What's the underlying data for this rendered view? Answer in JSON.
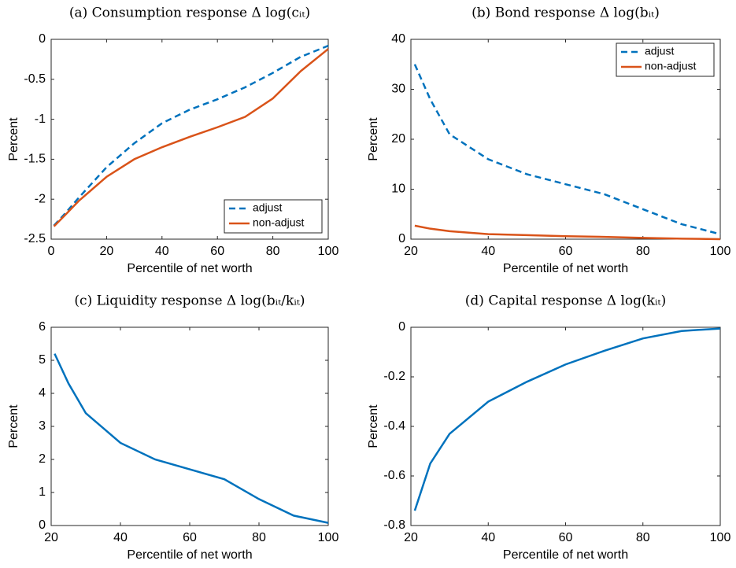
{
  "chart_data": [
    {
      "type": "line",
      "title": "(a) Consumption response Δ log(cᵢₜ)",
      "xlabel": "Percentile of net worth",
      "ylabel": "Percent",
      "x": [
        1,
        5,
        10,
        20,
        30,
        40,
        50,
        60,
        70,
        80,
        90,
        100
      ],
      "series": [
        {
          "name": "adjust",
          "color": "#0072bd",
          "dash": true,
          "values": [
            -2.33,
            -2.18,
            -1.98,
            -1.6,
            -1.3,
            -1.05,
            -0.88,
            -0.75,
            -0.6,
            -0.42,
            -0.22,
            -0.08
          ]
        },
        {
          "name": "non-adjust",
          "color": "#d95319",
          "dash": false,
          "values": [
            -2.34,
            -2.2,
            -2.02,
            -1.72,
            -1.5,
            -1.35,
            -1.22,
            -1.1,
            -0.97,
            -0.74,
            -0.4,
            -0.12
          ]
        }
      ],
      "xlim": [
        0,
        100
      ],
      "xticks": [
        0,
        20,
        40,
        60,
        80,
        100
      ],
      "ylim": [
        -2.5,
        0
      ],
      "yticks": [
        -2.5,
        -2,
        -1.5,
        -1,
        -0.5,
        0
      ],
      "legend": "lower right"
    },
    {
      "type": "line",
      "title": "(b) Bond response Δ log(bᵢₜ)",
      "xlabel": "Percentile of net worth",
      "ylabel": "Percent",
      "x": [
        21,
        25,
        30,
        40,
        50,
        60,
        70,
        80,
        90,
        100
      ],
      "series": [
        {
          "name": "adjust",
          "color": "#0072bd",
          "dash": true,
          "values": [
            35,
            28,
            21,
            16,
            13,
            11,
            9,
            6,
            3,
            1
          ]
        },
        {
          "name": "non-adjust",
          "color": "#d95319",
          "dash": false,
          "values": [
            2.7,
            2.1,
            1.6,
            1.0,
            0.8,
            0.6,
            0.45,
            0.25,
            0.1,
            0
          ]
        }
      ],
      "xlim": [
        20,
        100
      ],
      "xticks": [
        20,
        40,
        60,
        80,
        100
      ],
      "ylim": [
        0,
        40
      ],
      "yticks": [
        0,
        10,
        20,
        30,
        40
      ],
      "legend": "upper right"
    },
    {
      "type": "line",
      "title": "(c) Liquidity response Δ log(bᵢₜ/kᵢₜ)",
      "xlabel": "Percentile of net worth",
      "ylabel": "Percent",
      "x": [
        21,
        25,
        30,
        40,
        50,
        60,
        70,
        80,
        90,
        100
      ],
      "values": [
        5.2,
        4.3,
        3.4,
        2.5,
        2.0,
        1.7,
        1.4,
        0.8,
        0.3,
        0.08
      ],
      "color": "#0072bd",
      "xlim": [
        20,
        100
      ],
      "xticks": [
        20,
        40,
        60,
        80,
        100
      ],
      "ylim": [
        0,
        6
      ],
      "yticks": [
        0,
        1,
        2,
        3,
        4,
        5,
        6
      ]
    },
    {
      "type": "line",
      "title": "(d) Capital response Δ log(kᵢₜ)",
      "xlabel": "Percentile of net worth",
      "ylabel": "Percent",
      "x": [
        21,
        25,
        30,
        40,
        50,
        60,
        70,
        80,
        90,
        100
      ],
      "values": [
        -0.74,
        -0.55,
        -0.43,
        -0.3,
        -0.22,
        -0.15,
        -0.095,
        -0.045,
        -0.015,
        -0.005
      ],
      "color": "#0072bd",
      "xlim": [
        20,
        100
      ],
      "xticks": [
        20,
        40,
        60,
        80,
        100
      ],
      "ylim": [
        -0.8,
        0
      ],
      "yticks": [
        -0.8,
        -0.6,
        -0.4,
        -0.2,
        0
      ]
    }
  ]
}
